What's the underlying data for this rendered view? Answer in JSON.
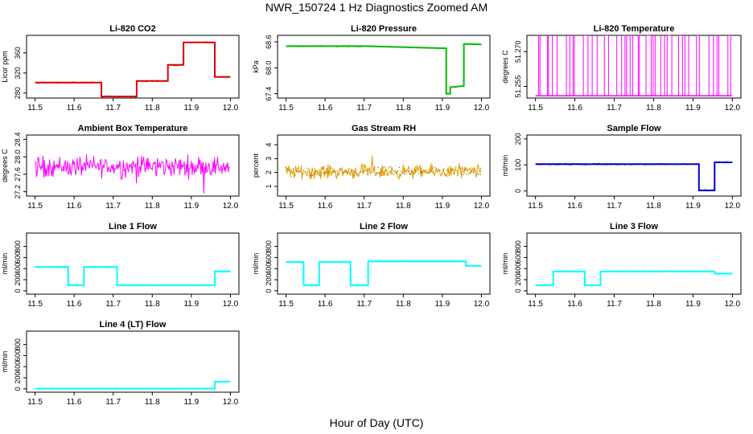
{
  "page": {
    "title": "NWR_150724  1 Hz Diagnostics Zoomed AM",
    "xlabel": "Hour of Day (UTC)"
  },
  "chart_data": [
    {
      "type": "line",
      "title": "Li-820 CO2",
      "ylabel": "Licor ppm",
      "color": "#dd0000",
      "xlim": [
        11.5,
        12.0
      ],
      "xticks": [
        "11.5",
        "11.6",
        "11.7",
        "11.8",
        "11.9",
        "12.0"
      ],
      "ylim": [
        270,
        395
      ],
      "yticks": [
        "280",
        "320",
        "360"
      ],
      "mode": "step",
      "series": [
        {
          "x": [
            11.5,
            11.67,
            11.67,
            11.76,
            11.76,
            11.84,
            11.84,
            11.88,
            11.88,
            11.96,
            11.96,
            12.0
          ],
          "values": [
            301,
            301,
            273,
            273,
            304,
            304,
            336,
            336,
            381,
            381,
            312,
            312
          ]
        }
      ]
    },
    {
      "type": "line",
      "title": "Li-820 Pressure",
      "ylabel": "kPa",
      "color": "#00bb00",
      "xlim": [
        11.5,
        12.0
      ],
      "xticks": [
        "11.5",
        "11.6",
        "11.7",
        "11.8",
        "11.9",
        "12.0"
      ],
      "ylim": [
        67.3,
        68.75
      ],
      "yticks": [
        "67.4",
        "68.0",
        "68.6"
      ],
      "mode": "step",
      "series": [
        {
          "x": [
            11.5,
            11.7,
            11.91,
            11.91,
            11.92,
            11.92,
            11.955,
            11.955,
            11.96,
            11.96,
            12.0
          ],
          "values": [
            68.5,
            68.5,
            68.45,
            67.4,
            67.4,
            67.55,
            67.58,
            68.55,
            68.55,
            68.55,
            68.54
          ]
        }
      ]
    },
    {
      "type": "line",
      "title": "Li-820 Temperature",
      "ylabel": "degrees C",
      "color": "#ff00ff",
      "xlim": [
        11.5,
        12.0
      ],
      "xticks": [
        "11.5",
        "11.6",
        "11.7",
        "11.8",
        "11.9",
        "12.0"
      ],
      "ylim": [
        51.25,
        51.277
      ],
      "yticks": [
        "51.255",
        "51.270"
      ],
      "mode": "toggle",
      "low": 51.251,
      "high": 51.277
    },
    {
      "type": "line",
      "title": "Ambient Box Temperature",
      "ylabel": "degrees C",
      "color": "#ff00ff",
      "xlim": [
        11.5,
        12.0
      ],
      "xticks": [
        "11.5",
        "11.6",
        "11.7",
        "11.8",
        "11.9",
        "12.0"
      ],
      "ylim": [
        27.1,
        28.5
      ],
      "yticks": [
        "27.2",
        "27.6",
        "28.0",
        "28.4"
      ],
      "mode": "noise",
      "mean": 27.78,
      "spread": 0.22
    },
    {
      "type": "line",
      "title": "Gas Stream RH",
      "ylabel": "percent",
      "color": "#e0a000",
      "xlim": [
        11.5,
        12.0
      ],
      "xticks": [
        "11.5",
        "11.6",
        "11.7",
        "11.8",
        "11.9",
        "12.0"
      ],
      "ylim": [
        0.3,
        4.7
      ],
      "yticks": [
        "1",
        "2",
        "3",
        "4"
      ],
      "mode": "noise",
      "mean": 2.05,
      "spread": 0.45
    },
    {
      "type": "line",
      "title": "Sample Flow",
      "ylabel": "ml/min",
      "color": "#0000cc",
      "xlim": [
        11.5,
        12.0
      ],
      "xticks": [
        "11.5",
        "11.6",
        "11.7",
        "11.8",
        "11.9",
        "12.0"
      ],
      "ylim": [
        -20,
        215
      ],
      "yticks": [
        "0",
        "100",
        "200"
      ],
      "mode": "step",
      "series": [
        {
          "x": [
            11.5,
            11.915,
            11.915,
            11.955,
            11.955,
            12.0
          ],
          "values": [
            103,
            103,
            2,
            2,
            110,
            110
          ]
        }
      ]
    },
    {
      "type": "line",
      "title": "Line 1 Flow",
      "ylabel": "ml/min",
      "color": "#00ffff",
      "xlim": [
        11.5,
        12.0
      ],
      "xticks": [
        "11.5",
        "11.6",
        "11.7",
        "11.8",
        "11.9",
        "12.0"
      ],
      "ylim": [
        -60,
        1040
      ],
      "yticks": [
        "0",
        "200",
        "400",
        "600",
        "800"
      ],
      "mode": "step",
      "series": [
        {
          "x": [
            11.5,
            11.585,
            11.585,
            11.625,
            11.625,
            11.71,
            11.71,
            11.96,
            11.96,
            12.0
          ],
          "values": [
            430,
            430,
            100,
            100,
            430,
            430,
            100,
            100,
            350,
            350
          ]
        }
      ]
    },
    {
      "type": "line",
      "title": "Line 2 Flow",
      "ylabel": "ml/min",
      "color": "#00ffff",
      "xlim": [
        11.5,
        12.0
      ],
      "xticks": [
        "11.5",
        "11.6",
        "11.7",
        "11.8",
        "11.9",
        "12.0"
      ],
      "ylim": [
        -60,
        1040
      ],
      "yticks": [
        "0",
        "200",
        "400",
        "600",
        "800"
      ],
      "mode": "step",
      "series": [
        {
          "x": [
            11.5,
            11.545,
            11.545,
            11.585,
            11.585,
            11.665,
            11.665,
            11.71,
            11.71,
            11.96,
            11.96,
            12.0
          ],
          "values": [
            520,
            520,
            100,
            100,
            520,
            520,
            100,
            100,
            530,
            530,
            450,
            450
          ]
        }
      ]
    },
    {
      "type": "line",
      "title": "Line 3 Flow",
      "ylabel": "ml/min",
      "color": "#00ffff",
      "xlim": [
        11.5,
        12.0
      ],
      "xticks": [
        "11.5",
        "11.6",
        "11.7",
        "11.8",
        "11.9",
        "12.0"
      ],
      "ylim": [
        -60,
        1040
      ],
      "yticks": [
        "0",
        "200",
        "400",
        "600",
        "800"
      ],
      "mode": "step",
      "series": [
        {
          "x": [
            11.5,
            11.545,
            11.545,
            11.625,
            11.625,
            11.665,
            11.665,
            11.955,
            11.955,
            12.0
          ],
          "values": [
            100,
            100,
            350,
            350,
            100,
            100,
            350,
            350,
            310,
            310
          ]
        }
      ]
    },
    {
      "type": "line",
      "title": "Line 4 (LT) Flow",
      "ylabel": "ml/min",
      "color": "#00ffff",
      "xlim": [
        11.5,
        12.0
      ],
      "xticks": [
        "11.5",
        "11.6",
        "11.7",
        "11.8",
        "11.9",
        "12.0"
      ],
      "ylim": [
        -60,
        1040
      ],
      "yticks": [
        "0",
        "200",
        "400",
        "600",
        "800"
      ],
      "mode": "step",
      "series": [
        {
          "x": [
            11.5,
            11.96,
            11.96,
            12.0
          ],
          "values": [
            5,
            5,
            130,
            130
          ]
        }
      ]
    }
  ]
}
